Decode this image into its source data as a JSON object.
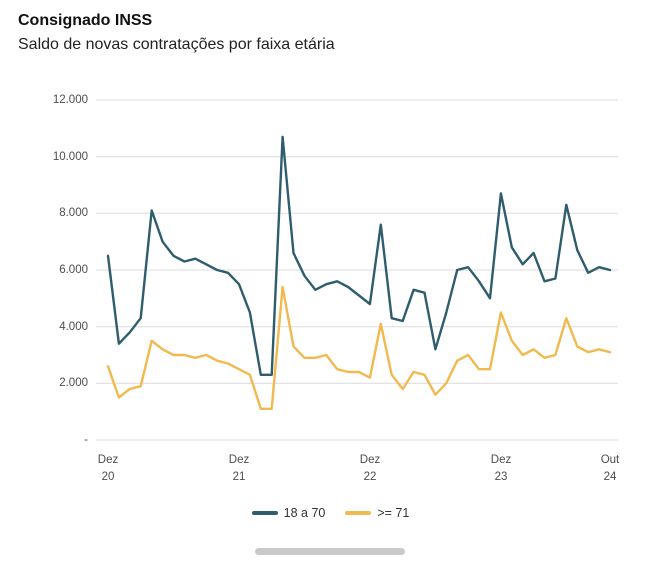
{
  "header": {
    "title": "Consignado INSS",
    "subtitle": "Saldo de novas contratações por faixa etária"
  },
  "chart_data": {
    "type": "line",
    "title": "Consignado INSS",
    "subtitle": "Saldo de novas contratações por faixa etária",
    "x_unit": "month",
    "x_range": "Dez 2020 a Out 2024",
    "grid": true,
    "legend_position": "bottom",
    "ylim": [
      0,
      12000
    ],
    "y_ticks": [
      "12.000",
      "10.000",
      "8.000",
      "6.000",
      "4.000",
      "2.000",
      "-"
    ],
    "x_ticks": [
      {
        "line1": "Dez",
        "line2": "20"
      },
      {
        "line1": "Dez",
        "line2": "21"
      },
      {
        "line1": "Dez",
        "line2": "22"
      },
      {
        "line1": "Dez",
        "line2": "23"
      },
      {
        "line1": "Out",
        "line2": "24"
      }
    ],
    "series": [
      {
        "name": "18 a 70",
        "color": "#2F5D6D",
        "values": [
          6500,
          3400,
          3800,
          4300,
          8100,
          7000,
          6500,
          6300,
          6400,
          6200,
          6000,
          5900,
          5500,
          4500,
          2300,
          2300,
          10700,
          6600,
          5800,
          5300,
          5500,
          5600,
          5400,
          5100,
          4800,
          7600,
          4300,
          4200,
          5300,
          5200,
          3200,
          4500,
          6000,
          6100,
          5600,
          5000,
          8700,
          6800,
          6200,
          6600,
          5600,
          5700,
          8300,
          6700,
          5900,
          6100,
          6000
        ]
      },
      {
        "name": ">= 71",
        "color": "#F2B950",
        "values": [
          2600,
          1500,
          1800,
          1900,
          3500,
          3200,
          3000,
          3000,
          2900,
          3000,
          2800,
          2700,
          2500,
          2300,
          1100,
          1100,
          5400,
          3300,
          2900,
          2900,
          3000,
          2500,
          2400,
          2400,
          2200,
          4100,
          2300,
          1800,
          2400,
          2300,
          1600,
          2000,
          2800,
          3000,
          2500,
          2500,
          4500,
          3500,
          3000,
          3200,
          2900,
          3000,
          4300,
          3300,
          3100,
          3200,
          3100
        ]
      }
    ]
  },
  "colors": {
    "grid": "#dcdcdc",
    "axis_text": "#4d4d4d",
    "handle": "#c9c9c9"
  }
}
